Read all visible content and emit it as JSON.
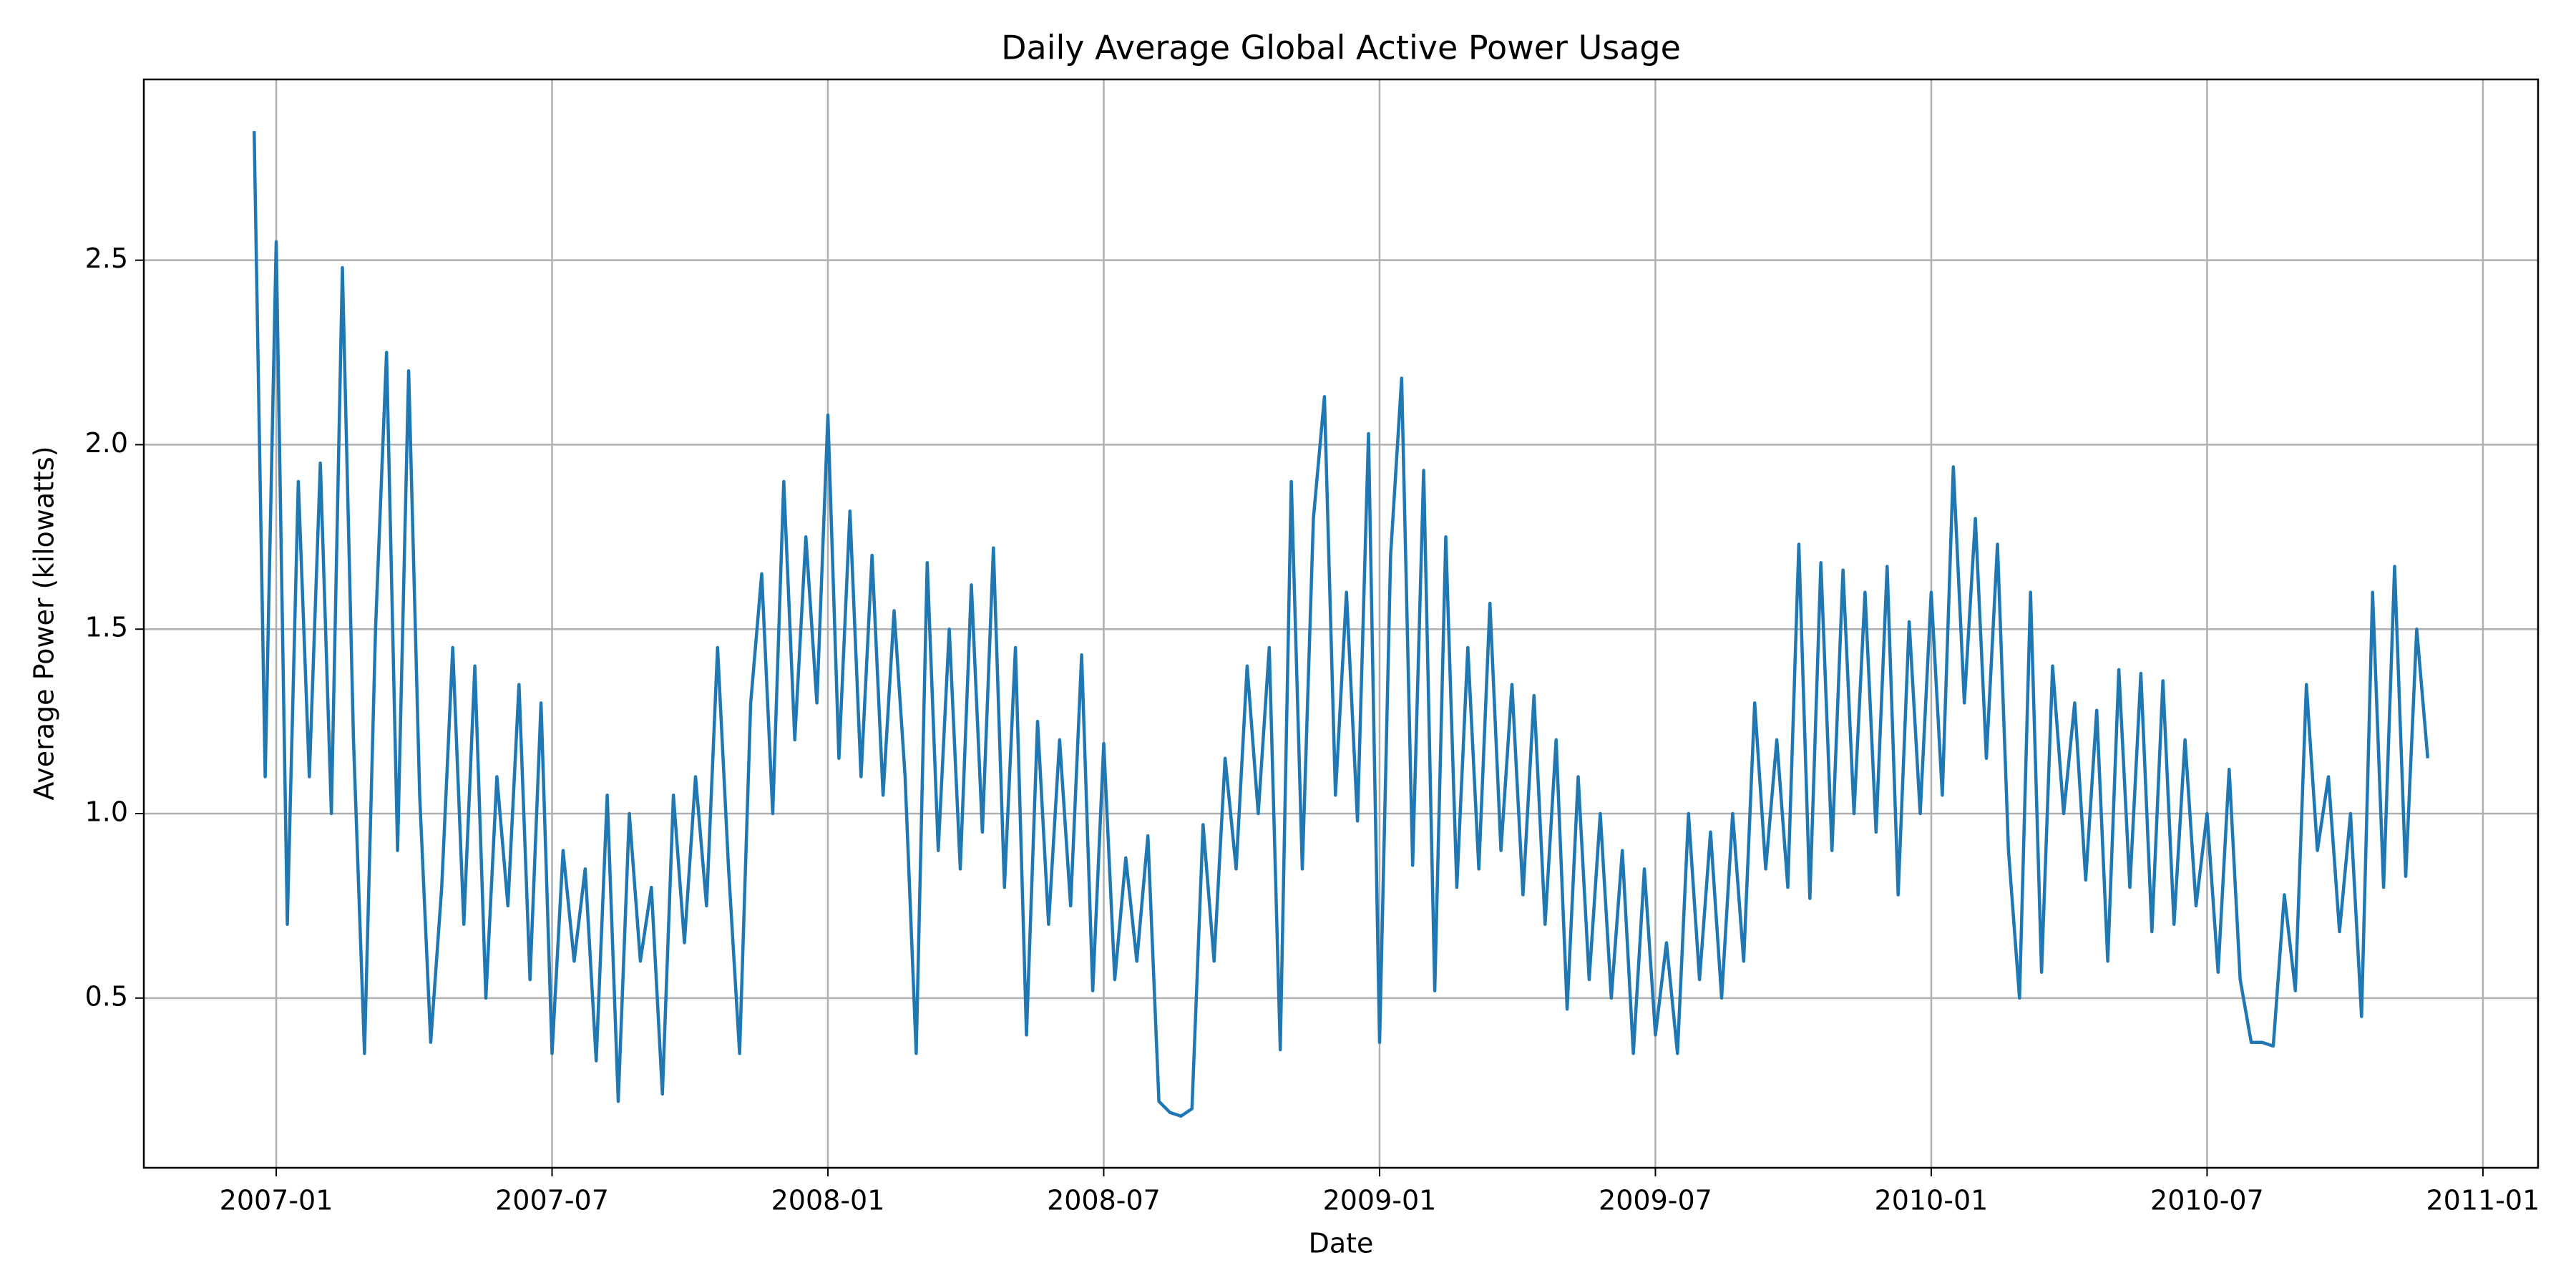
{
  "chart_data": {
    "type": "line",
    "title": "Daily Average Global Active Power Usage",
    "xlabel": "Date",
    "ylabel": "Average Power (kilowatts)",
    "color": "#1f77b4",
    "grid": true,
    "xlim": [
      2006.76,
      2011.1
    ],
    "ylim": [
      0.04,
      2.99
    ],
    "xticks": [
      {
        "value": 2007.0,
        "label": "2007-01"
      },
      {
        "value": 2007.5,
        "label": "2007-07"
      },
      {
        "value": 2008.0,
        "label": "2008-01"
      },
      {
        "value": 2008.5,
        "label": "2008-07"
      },
      {
        "value": 2009.0,
        "label": "2009-01"
      },
      {
        "value": 2009.5,
        "label": "2009-07"
      },
      {
        "value": 2010.0,
        "label": "2010-01"
      },
      {
        "value": 2010.5,
        "label": "2010-07"
      },
      {
        "value": 2011.0,
        "label": "2011-01"
      }
    ],
    "yticks": [
      0.5,
      {
        "value": 1,
        "label": "1.0"
      },
      1.5,
      {
        "value": 2,
        "label": "2.0"
      },
      2.5
    ],
    "x": [
      2006.96,
      2006.98,
      2007.0,
      2007.02,
      2007.04,
      2007.06,
      2007.08,
      2007.1,
      2007.12,
      2007.14,
      2007.16,
      2007.18,
      2007.2,
      2007.22,
      2007.24,
      2007.26,
      2007.28,
      2007.3,
      2007.32,
      2007.34,
      2007.36,
      2007.38,
      2007.4,
      2007.42,
      2007.44,
      2007.46,
      2007.48,
      2007.5,
      2007.52,
      2007.54,
      2007.56,
      2007.58,
      2007.6,
      2007.62,
      2007.64,
      2007.66,
      2007.68,
      2007.7,
      2007.72,
      2007.74,
      2007.76,
      2007.78,
      2007.8,
      2007.82,
      2007.84,
      2007.86,
      2007.88,
      2007.9,
      2007.92,
      2007.94,
      2007.96,
      2007.98,
      2008.0,
      2008.02,
      2008.04,
      2008.06,
      2008.08,
      2008.1,
      2008.12,
      2008.14,
      2008.16,
      2008.18,
      2008.2,
      2008.22,
      2008.24,
      2008.26,
      2008.28,
      2008.3,
      2008.32,
      2008.34,
      2008.36,
      2008.38,
      2008.4,
      2008.42,
      2008.44,
      2008.46,
      2008.48,
      2008.5,
      2008.52,
      2008.54,
      2008.56,
      2008.58,
      2008.6,
      2008.62,
      2008.64,
      2008.66,
      2008.68,
      2008.7,
      2008.72,
      2008.74,
      2008.76,
      2008.78,
      2008.8,
      2008.82,
      2008.84,
      2008.86,
      2008.88,
      2008.9,
      2008.92,
      2008.94,
      2008.96,
      2008.98,
      2009.0,
      2009.02,
      2009.04,
      2009.06,
      2009.08,
      2009.1,
      2009.12,
      2009.14,
      2009.16,
      2009.18,
      2009.2,
      2009.22,
      2009.24,
      2009.26,
      2009.28,
      2009.3,
      2009.32,
      2009.34,
      2009.36,
      2009.38,
      2009.4,
      2009.42,
      2009.44,
      2009.46,
      2009.48,
      2009.5,
      2009.52,
      2009.54,
      2009.56,
      2009.58,
      2009.6,
      2009.62,
      2009.64,
      2009.66,
      2009.68,
      2009.7,
      2009.72,
      2009.74,
      2009.76,
      2009.78,
      2009.8,
      2009.82,
      2009.84,
      2009.86,
      2009.88,
      2009.9,
      2009.92,
      2009.94,
      2009.96,
      2009.98,
      2010.0,
      2010.02,
      2010.04,
      2010.06,
      2010.08,
      2010.1,
      2010.12,
      2010.14,
      2010.16,
      2010.18,
      2010.2,
      2010.22,
      2010.24,
      2010.26,
      2010.28,
      2010.3,
      2010.32,
      2010.34,
      2010.36,
      2010.38,
      2010.4,
      2010.42,
      2010.44,
      2010.46,
      2010.48,
      2010.5,
      2010.52,
      2010.54,
      2010.56,
      2010.58,
      2010.6,
      2010.62,
      2010.64,
      2010.66,
      2010.68,
      2010.7,
      2010.72,
      2010.74,
      2010.76,
      2010.78,
      2010.8,
      2010.82,
      2010.84,
      2010.86,
      2010.88,
      2010.9
    ],
    "values": [
      2.85,
      1.1,
      2.55,
      0.7,
      1.9,
      1.1,
      1.95,
      1.0,
      2.48,
      1.2,
      0.35,
      1.5,
      2.25,
      0.9,
      2.2,
      1.05,
      0.38,
      0.8,
      1.45,
      0.7,
      1.4,
      0.5,
      1.1,
      0.75,
      1.35,
      0.55,
      1.3,
      0.35,
      0.9,
      0.6,
      0.85,
      0.33,
      1.05,
      0.22,
      1.0,
      0.6,
      0.8,
      0.24,
      1.05,
      0.65,
      1.1,
      0.75,
      1.45,
      0.85,
      0.35,
      1.3,
      1.65,
      1.0,
      1.9,
      1.2,
      1.75,
      1.3,
      2.08,
      1.15,
      1.82,
      1.1,
      1.7,
      1.05,
      1.55,
      1.1,
      0.35,
      1.68,
      0.9,
      1.5,
      0.85,
      1.62,
      0.95,
      1.72,
      0.8,
      1.45,
      0.4,
      1.25,
      0.7,
      1.2,
      0.75,
      1.43,
      0.52,
      1.19,
      0.55,
      0.88,
      0.6,
      0.94,
      0.22,
      0.19,
      0.18,
      0.2,
      0.97,
      0.6,
      1.15,
      0.85,
      1.4,
      1.0,
      1.45,
      0.36,
      1.9,
      0.85,
      1.8,
      2.13,
      1.05,
      1.6,
      0.98,
      2.03,
      0.38,
      1.7,
      2.18,
      0.86,
      1.93,
      0.52,
      1.75,
      0.8,
      1.45,
      0.85,
      1.57,
      0.9,
      1.35,
      0.78,
      1.32,
      0.7,
      1.2,
      0.47,
      1.1,
      0.55,
      1.0,
      0.5,
      0.9,
      0.35,
      0.85,
      0.4,
      0.65,
      0.35,
      1.0,
      0.55,
      0.95,
      0.5,
      1.0,
      0.6,
      1.3,
      0.85,
      1.2,
      0.8,
      1.73,
      0.77,
      1.68,
      0.9,
      1.66,
      1.0,
      1.6,
      0.95,
      1.67,
      0.78,
      1.52,
      1.0,
      1.6,
      1.05,
      1.94,
      1.3,
      1.8,
      1.15,
      1.73,
      0.9,
      0.5,
      1.6,
      0.57,
      1.4,
      1.0,
      1.3,
      0.82,
      1.28,
      0.6,
      1.39,
      0.8,
      1.38,
      0.68,
      1.36,
      0.7,
      1.2,
      0.75,
      1.0,
      0.57,
      1.12,
      0.55,
      0.38,
      0.38,
      0.37,
      0.78,
      0.52,
      1.35,
      0.9,
      1.1,
      0.68,
      1.0,
      0.45,
      1.6,
      0.8,
      1.67,
      0.83,
      1.5,
      1.15
    ]
  }
}
